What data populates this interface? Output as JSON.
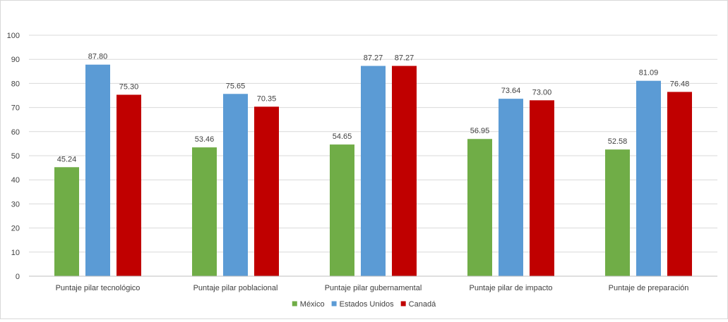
{
  "chart_data": {
    "type": "bar",
    "title": "",
    "xlabel": "",
    "ylabel": "",
    "ylim": [
      0,
      100
    ],
    "yticks": [
      0,
      10,
      20,
      30,
      40,
      50,
      60,
      70,
      80,
      90,
      100
    ],
    "grid": true,
    "legend_position": "bottom",
    "categories": [
      "Puntaje pilar tecnológico",
      "Puntaje pilar poblacional",
      "Puntaje pilar gubernamental",
      "Puntaje pilar de impacto",
      "Puntaje de preparación"
    ],
    "series": [
      {
        "name": "México",
        "color": "#70ad47",
        "values": [
          45.24,
          53.46,
          54.65,
          56.95,
          52.58
        ],
        "labels": [
          "45.24",
          "53.46",
          "54.65",
          "56.95",
          "52.58"
        ]
      },
      {
        "name": "Estados Unidos",
        "color": "#5b9bd5",
        "values": [
          87.8,
          75.65,
          87.27,
          73.64,
          81.09
        ],
        "labels": [
          "87.80",
          "75.65",
          "87.27",
          "73.64",
          "81.09"
        ]
      },
      {
        "name": "Canadá",
        "color": "#c00000",
        "values": [
          75.3,
          70.35,
          87.27,
          73.0,
          76.48
        ],
        "labels": [
          "75.30",
          "70.35",
          "87.27",
          "73.00",
          "76.48"
        ]
      }
    ]
  }
}
